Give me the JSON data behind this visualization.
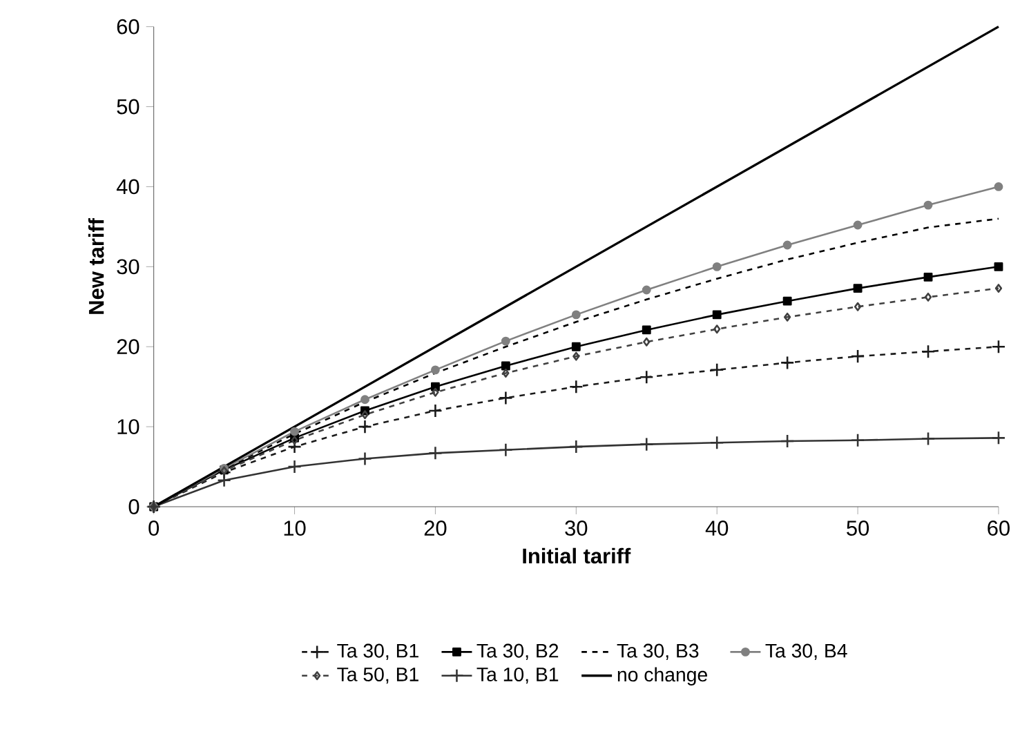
{
  "chart_data": {
    "type": "line",
    "xlabel": "Initial tariff",
    "ylabel": "New tariff",
    "x": [
      0,
      5,
      10,
      15,
      20,
      25,
      30,
      35,
      40,
      45,
      50,
      55,
      60
    ],
    "xlim": [
      0,
      60
    ],
    "ylim": [
      0,
      60
    ],
    "xticks": [
      0,
      10,
      20,
      30,
      40,
      50,
      60
    ],
    "yticks": [
      0,
      10,
      20,
      30,
      40,
      50,
      60
    ],
    "grid": false,
    "legend": "bottom",
    "series": [
      {
        "name": "Ta 30, B1",
        "color": "#1a1a1a",
        "marker": "cross",
        "line_style": "dotted",
        "values": [
          0,
          4.3,
          7.5,
          10,
          12,
          13.6,
          15,
          16.2,
          17.1,
          18,
          18.8,
          19.4,
          20
        ]
      },
      {
        "name": "Ta 30, B2",
        "color": "#000000",
        "marker": "square",
        "line_style": "solid",
        "values": [
          0,
          4.6,
          8.6,
          12,
          15,
          17.6,
          20,
          22.1,
          24,
          25.7,
          27.3,
          28.7,
          30
        ]
      },
      {
        "name": "Ta 30, B3",
        "color": "#000000",
        "marker": "none",
        "line_style": "dotted",
        "values": [
          0,
          4.7,
          9.1,
          13.1,
          16.7,
          20,
          23.1,
          25.9,
          28.5,
          30.9,
          33,
          34.9,
          36
        ]
      },
      {
        "name": "Ta 30, B4",
        "color": "#808080",
        "marker": "circle",
        "line_style": "solid",
        "values": [
          0,
          4.8,
          9.4,
          13.4,
          17.1,
          20.7,
          24,
          27.1,
          30,
          32.7,
          35.2,
          37.7,
          40
        ]
      },
      {
        "name": "Ta 50, B1",
        "color": "#404040",
        "marker": "diamond",
        "line_style": "dashed",
        "values": [
          0,
          4.5,
          8.3,
          11.5,
          14.3,
          16.7,
          18.8,
          20.6,
          22.2,
          23.7,
          25,
          26.2,
          27.3
        ]
      },
      {
        "name": "Ta 10, B1",
        "color": "#333333",
        "marker": "cross",
        "line_style": "solid",
        "values": [
          0,
          3.3,
          5,
          6,
          6.7,
          7.1,
          7.5,
          7.8,
          8,
          8.2,
          8.3,
          8.5,
          8.6
        ]
      },
      {
        "name": "no change",
        "color": "#000000",
        "marker": "none",
        "line_style": "solid",
        "x": [
          0,
          60
        ],
        "values": [
          0,
          60
        ]
      }
    ]
  }
}
